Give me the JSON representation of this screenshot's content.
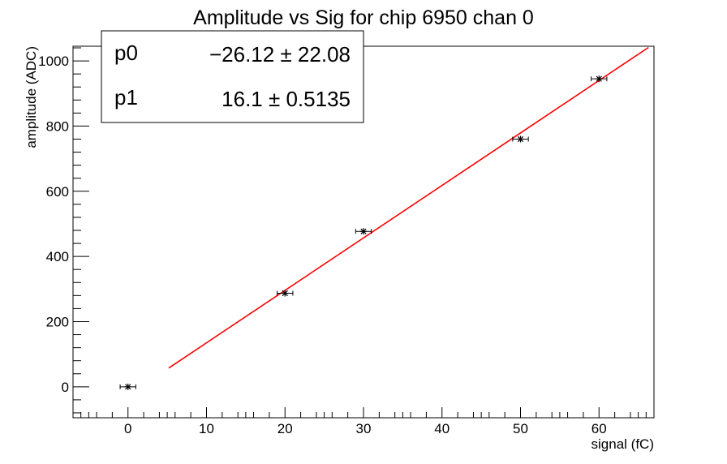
{
  "chart_data": {
    "type": "scatter",
    "title": "Amplitude vs Sig for chip 6950 chan 0",
    "xlabel": "signal (fC)",
    "ylabel": "amplitude (ADC)",
    "xlim": [
      -7,
      67
    ],
    "ylim": [
      -95,
      1045
    ],
    "x_ticks": [
      0,
      10,
      20,
      30,
      40,
      50,
      60
    ],
    "y_ticks": [
      0,
      200,
      400,
      600,
      800,
      1000
    ],
    "grid": false,
    "points": [
      {
        "x": 0,
        "y": 0,
        "xerr": 1.0
      },
      {
        "x": 20,
        "y": 287,
        "xerr": 1.0
      },
      {
        "x": 30,
        "y": 477,
        "xerr": 1.0
      },
      {
        "x": 50,
        "y": 760,
        "xerr": 1.0
      },
      {
        "x": 60,
        "y": 945,
        "xerr": 1.0
      }
    ],
    "fit": {
      "function": "pol1",
      "p0": -26.12,
      "p1": 16.1,
      "x_range": [
        5.2,
        66.3
      ],
      "color": "#ff0000"
    },
    "stats_box": {
      "position": "top-left",
      "rows": [
        {
          "name": "p0",
          "value": "−26.12 ± 22.08"
        },
        {
          "name": "p1",
          "value": "16.1 ± 0.5135"
        }
      ]
    }
  }
}
